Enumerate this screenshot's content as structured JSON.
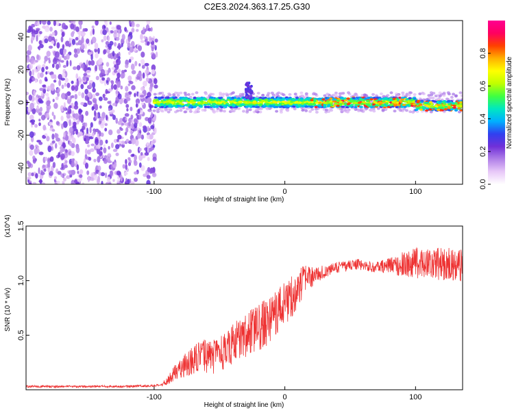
{
  "figure": {
    "title": "C2E3.2024.363.17.25.G30"
  },
  "chart_data": [
    {
      "type": "heatmap",
      "title": "C2E3.2024.363.17.25.G30",
      "xlabel": "Height of straight line (km)",
      "ylabel": "Frequency (Hz)",
      "xlim": [
        -198,
        136
      ],
      "ylim": [
        -50,
        50
      ],
      "x_ticks": [
        -100,
        0,
        100
      ],
      "y_ticks": [
        -40,
        -20,
        0,
        20,
        40
      ],
      "grid": false,
      "colorbar": {
        "label": "Normalized spectral amplitude",
        "range": [
          0,
          1
        ],
        "ticks": [
          0.0,
          0.2,
          0.4,
          0.6,
          0.8
        ],
        "colormap": [
          "#ffffff",
          "#e8c8f8",
          "#b080e8",
          "#7030d8",
          "#3040f0",
          "#00b0ff",
          "#00e8c0",
          "#40ff40",
          "#c0ff00",
          "#ffff00",
          "#ffb000",
          "#ff4000",
          "#ff0060",
          "#ff0090"
        ]
      },
      "features": {
        "noise_region_x": [
          -198,
          -98
        ],
        "signal_band_x": [
          -100,
          136
        ],
        "signal_band_center_hz": 0,
        "signal_band_halfwidth_hz": 3,
        "signal_peak_x": [
          -30,
          -25
        ]
      }
    },
    {
      "type": "line",
      "xlabel": "Height of straight line (km)",
      "ylabel": "SNR (10 * v/v)",
      "ylabel_multiplier": "(x10^4)",
      "xlim": [
        -198,
        136
      ],
      "ylim": [
        0,
        1.5
      ],
      "x_ticks": [
        -100,
        0,
        100
      ],
      "y_ticks": [
        0.5,
        1.0,
        1.5
      ],
      "grid": false,
      "series": [
        {
          "color": "#ee3333",
          "x": [
            -198,
            -160,
            -120,
            -95,
            -90,
            -85,
            -80,
            -75,
            -70,
            -65,
            -60,
            -55,
            -50,
            -45,
            -40,
            -35,
            -30,
            -25,
            -20,
            -15,
            -10,
            -5,
            0,
            5,
            10,
            15,
            20,
            25,
            30,
            35,
            40,
            45,
            50,
            55,
            60,
            65,
            70,
            75,
            80,
            85,
            90,
            95,
            100,
            105,
            110,
            115,
            120,
            125,
            130,
            136
          ],
          "y": [
            0.03,
            0.03,
            0.03,
            0.04,
            0.08,
            0.15,
            0.2,
            0.24,
            0.27,
            0.3,
            0.31,
            0.3,
            0.33,
            0.36,
            0.42,
            0.47,
            0.5,
            0.53,
            0.57,
            0.61,
            0.67,
            0.73,
            0.79,
            0.85,
            0.92,
            1.0,
            1.03,
            1.06,
            1.08,
            1.1,
            1.12,
            1.13,
            1.14,
            1.15,
            1.14,
            1.13,
            1.12,
            1.13,
            1.14,
            1.14,
            1.15,
            1.15,
            1.16,
            1.16,
            1.17,
            1.16,
            1.15,
            1.16,
            1.14,
            1.14
          ],
          "envelope_amplitude": [
            0.01,
            0.01,
            0.01,
            0.01,
            0.04,
            0.07,
            0.1,
            0.12,
            0.14,
            0.15,
            0.16,
            0.16,
            0.16,
            0.17,
            0.18,
            0.19,
            0.2,
            0.21,
            0.22,
            0.22,
            0.22,
            0.22,
            0.2,
            0.2,
            0.18,
            0.14,
            0.1,
            0.07,
            0.06,
            0.05,
            0.05,
            0.05,
            0.05,
            0.05,
            0.05,
            0.05,
            0.05,
            0.06,
            0.07,
            0.09,
            0.11,
            0.13,
            0.14,
            0.15,
            0.15,
            0.15,
            0.15,
            0.15,
            0.15,
            0.15
          ]
        }
      ]
    }
  ]
}
